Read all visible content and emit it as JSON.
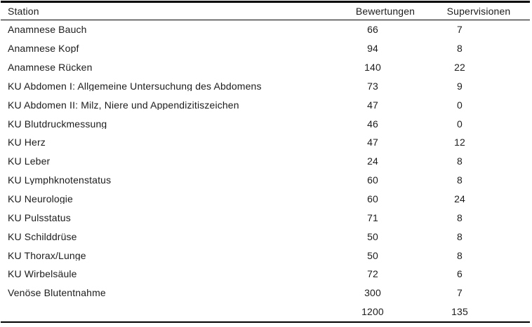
{
  "table": {
    "columns": {
      "station": "Station",
      "bewertungen": "Bewertungen",
      "supervisionen": "Supervisionen"
    },
    "rows": [
      {
        "station": "Anamnese Bauch",
        "bewertungen": "66",
        "supervisionen": "7"
      },
      {
        "station": "Anamnese Kopf",
        "bewertungen": "94",
        "supervisionen": "8"
      },
      {
        "station": "Anamnese Rücken",
        "bewertungen": "140",
        "supervisionen": "22"
      },
      {
        "station": "KU Abdomen I: Allgemeine Untersuchung des Abdomens",
        "bewertungen": "73",
        "supervisionen": "9"
      },
      {
        "station": "KU Abdomen II: Milz, Niere und Appendizitiszeichen",
        "bewertungen": "47",
        "supervisionen": "0"
      },
      {
        "station": "KU Blutdruckmessung",
        "bewertungen": "46",
        "supervisionen": "0"
      },
      {
        "station": "KU Herz",
        "bewertungen": "47",
        "supervisionen": "12"
      },
      {
        "station": "KU Leber",
        "bewertungen": "24",
        "supervisionen": "8"
      },
      {
        "station": "KU Lymphknotenstatus",
        "bewertungen": "60",
        "supervisionen": "8"
      },
      {
        "station": "KU Neurologie",
        "bewertungen": "60",
        "supervisionen": "24"
      },
      {
        "station": "KU Pulsstatus",
        "bewertungen": "71",
        "supervisionen": "8"
      },
      {
        "station": "KU Schilddrüse",
        "bewertungen": "50",
        "supervisionen": "8"
      },
      {
        "station": "KU Thorax/Lunge",
        "bewertungen": "50",
        "supervisionen": "8"
      },
      {
        "station": "KU Wirbelsäule",
        "bewertungen": "72",
        "supervisionen": "6"
      },
      {
        "station": "Venöse Blutentnahme",
        "bewertungen": "300",
        "supervisionen": "7"
      }
    ],
    "total": {
      "station": "",
      "bewertungen": "1200",
      "supervisionen": "135"
    }
  },
  "colors": {
    "background": "#ffffff",
    "text": "#1c1c1c",
    "rule": "#000000"
  }
}
